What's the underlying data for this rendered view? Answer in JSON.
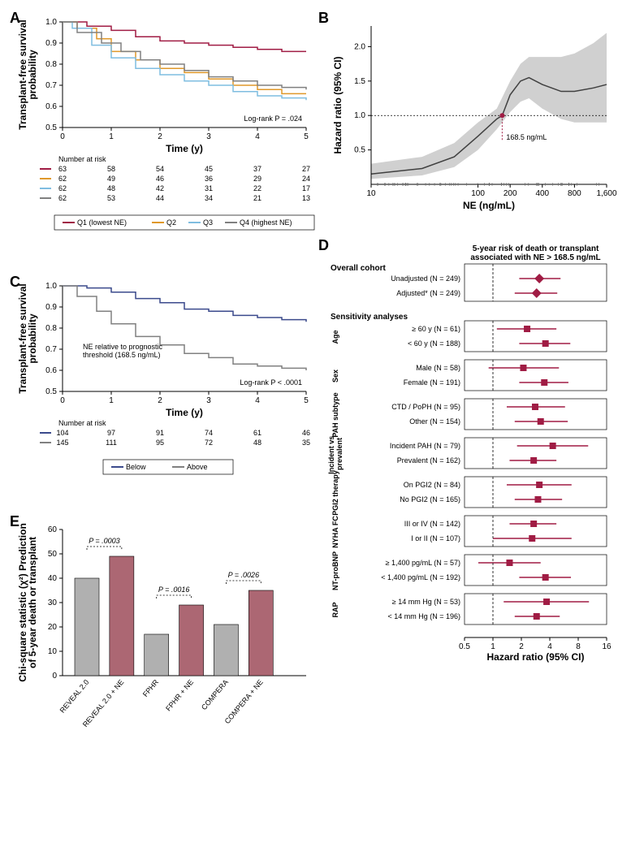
{
  "panelA": {
    "label": "A",
    "type": "kaplan_meier",
    "xlabel": "Time (y)",
    "ylabel": "Transplant-free survival\nprobability",
    "xlim": [
      0,
      5
    ],
    "ylim": [
      0.5,
      1.0
    ],
    "xticks": [
      0,
      1,
      2,
      3,
      4,
      5
    ],
    "yticks": [
      0.5,
      0.6,
      0.7,
      0.8,
      0.9,
      1.0
    ],
    "annotation": "Log-rank P = .024",
    "series": [
      {
        "name": "Q1 (lowest NE)",
        "color": "#a01c44",
        "points": [
          [
            0,
            1.0
          ],
          [
            0.5,
            0.98
          ],
          [
            1,
            0.96
          ],
          [
            1.5,
            0.93
          ],
          [
            2,
            0.91
          ],
          [
            2.5,
            0.9
          ],
          [
            3,
            0.89
          ],
          [
            3.5,
            0.88
          ],
          [
            4,
            0.87
          ],
          [
            4.5,
            0.86
          ],
          [
            5,
            0.86
          ]
        ]
      },
      {
        "name": "Q2",
        "color": "#e0982a",
        "points": [
          [
            0,
            1.0
          ],
          [
            0.3,
            0.97
          ],
          [
            0.7,
            0.92
          ],
          [
            1,
            0.86
          ],
          [
            1.5,
            0.82
          ],
          [
            2,
            0.78
          ],
          [
            2.5,
            0.76
          ],
          [
            3,
            0.73
          ],
          [
            3.5,
            0.7
          ],
          [
            4,
            0.68
          ],
          [
            4.5,
            0.66
          ],
          [
            5,
            0.66
          ]
        ]
      },
      {
        "name": "Q3",
        "color": "#7fbde0",
        "points": [
          [
            0,
            1.0
          ],
          [
            0.2,
            0.97
          ],
          [
            0.6,
            0.89
          ],
          [
            1,
            0.83
          ],
          [
            1.5,
            0.78
          ],
          [
            2,
            0.75
          ],
          [
            2.5,
            0.72
          ],
          [
            3,
            0.7
          ],
          [
            3.5,
            0.67
          ],
          [
            4,
            0.65
          ],
          [
            4.5,
            0.64
          ],
          [
            5,
            0.63
          ]
        ]
      },
      {
        "name": "Q4 (highest NE)",
        "color": "#808080",
        "points": [
          [
            0,
            1.0
          ],
          [
            0.3,
            0.95
          ],
          [
            0.8,
            0.9
          ],
          [
            1.2,
            0.86
          ],
          [
            1.6,
            0.82
          ],
          [
            2,
            0.8
          ],
          [
            2.5,
            0.77
          ],
          [
            3,
            0.74
          ],
          [
            3.5,
            0.72
          ],
          [
            4,
            0.7
          ],
          [
            4.5,
            0.69
          ],
          [
            5,
            0.68
          ]
        ]
      }
    ],
    "risk_table": {
      "header": "Number at risk",
      "cols": [
        0,
        1,
        2,
        3,
        4,
        5
      ],
      "rows": [
        {
          "color": "#a01c44",
          "vals": [
            63,
            58,
            54,
            45,
            37,
            27
          ]
        },
        {
          "color": "#e0982a",
          "vals": [
            62,
            49,
            46,
            36,
            29,
            24
          ]
        },
        {
          "color": "#7fbde0",
          "vals": [
            62,
            48,
            42,
            31,
            22,
            17
          ]
        },
        {
          "color": "#808080",
          "vals": [
            62,
            53,
            44,
            34,
            21,
            13
          ]
        }
      ]
    },
    "legend": [
      "Q1 (lowest NE)",
      "Q2",
      "Q3",
      "Q4 (highest NE)"
    ]
  },
  "panelB": {
    "label": "B",
    "type": "spline",
    "xlabel": "NE (ng/mL)",
    "ylabel": "Hazard ratio (95% CI)",
    "xscale": "log",
    "xlim": [
      10,
      1600
    ],
    "ylim": [
      0,
      2.3
    ],
    "xticks": [
      10,
      100,
      200,
      400,
      800,
      1600
    ],
    "yticks": [
      0.5,
      1.0,
      1.5,
      2.0
    ],
    "ref_line": 1.0,
    "annotation": "168.5 ng/mL",
    "annotation_color": "#a01c44",
    "curve_color": "#404040",
    "ci_color": "#d0d0d0",
    "curve": [
      [
        10,
        0.15
      ],
      [
        30,
        0.23
      ],
      [
        60,
        0.4
      ],
      [
        100,
        0.7
      ],
      [
        150,
        0.95
      ],
      [
        168.5,
        1.0
      ],
      [
        200,
        1.3
      ],
      [
        250,
        1.5
      ],
      [
        300,
        1.55
      ],
      [
        400,
        1.45
      ],
      [
        600,
        1.35
      ],
      [
        800,
        1.35
      ],
      [
        1200,
        1.4
      ],
      [
        1600,
        1.45
      ]
    ],
    "ci_upper": [
      [
        10,
        0.3
      ],
      [
        30,
        0.4
      ],
      [
        60,
        0.6
      ],
      [
        100,
        0.9
      ],
      [
        150,
        1.1
      ],
      [
        200,
        1.5
      ],
      [
        250,
        1.75
      ],
      [
        300,
        1.85
      ],
      [
        400,
        1.85
      ],
      [
        600,
        1.85
      ],
      [
        800,
        1.9
      ],
      [
        1200,
        2.05
      ],
      [
        1600,
        2.2
      ]
    ],
    "ci_lower": [
      [
        10,
        0.08
      ],
      [
        30,
        0.13
      ],
      [
        60,
        0.25
      ],
      [
        100,
        0.5
      ],
      [
        150,
        0.8
      ],
      [
        200,
        1.05
      ],
      [
        250,
        1.2
      ],
      [
        300,
        1.25
      ],
      [
        400,
        1.1
      ],
      [
        600,
        0.95
      ],
      [
        800,
        0.9
      ],
      [
        1200,
        0.9
      ],
      [
        1600,
        0.9
      ]
    ]
  },
  "panelC": {
    "label": "C",
    "type": "kaplan_meier",
    "xlabel": "Time (y)",
    "ylabel": "Transplant-free survival\nprobability",
    "xlim": [
      0,
      5
    ],
    "ylim": [
      0.5,
      1.0
    ],
    "xticks": [
      0,
      1,
      2,
      3,
      4,
      5
    ],
    "yticks": [
      0.5,
      0.6,
      0.7,
      0.8,
      0.9,
      1.0
    ],
    "note": "NE relative to prognostic\nthreshold (168.5 ng/mL)",
    "annotation": "Log-rank P < .0001",
    "series": [
      {
        "name": "Below",
        "color": "#3b4a8c",
        "points": [
          [
            0,
            1.0
          ],
          [
            0.5,
            0.99
          ],
          [
            1,
            0.97
          ],
          [
            1.5,
            0.94
          ],
          [
            2,
            0.92
          ],
          [
            2.5,
            0.89
          ],
          [
            3,
            0.88
          ],
          [
            3.5,
            0.86
          ],
          [
            4,
            0.85
          ],
          [
            4.5,
            0.84
          ],
          [
            5,
            0.83
          ]
        ]
      },
      {
        "name": "Above",
        "color": "#808080",
        "points": [
          [
            0,
            1.0
          ],
          [
            0.3,
            0.95
          ],
          [
            0.7,
            0.88
          ],
          [
            1,
            0.82
          ],
          [
            1.5,
            0.76
          ],
          [
            2,
            0.72
          ],
          [
            2.5,
            0.68
          ],
          [
            3,
            0.66
          ],
          [
            3.5,
            0.63
          ],
          [
            4,
            0.62
          ],
          [
            4.5,
            0.61
          ],
          [
            5,
            0.6
          ]
        ]
      }
    ],
    "risk_table": {
      "header": "Number at risk",
      "cols": [
        0,
        1,
        2,
        3,
        4,
        5
      ],
      "rows": [
        {
          "color": "#3b4a8c",
          "vals": [
            104,
            97,
            91,
            74,
            61,
            46
          ]
        },
        {
          "color": "#808080",
          "vals": [
            145,
            111,
            95,
            72,
            48,
            35
          ]
        }
      ]
    },
    "legend": [
      "Below",
      "Above"
    ]
  },
  "panelD": {
    "label": "D",
    "type": "forest",
    "title_left": "",
    "title_right": "5-year risk of death or transplant\nassociated with NE > 168.5 ng/mL",
    "xlabel": "Hazard ratio (95% CI)",
    "xscale": "log",
    "xlim": [
      0.5,
      16
    ],
    "xticks": [
      0.5,
      1,
      2,
      4,
      8,
      16
    ],
    "ref_line": 1.0,
    "point_color": "#a01c44",
    "line_color": "#a01c44",
    "groups": [
      {
        "heading": "Overall cohort",
        "rotated": false,
        "items": [
          {
            "label": "Unadjusted (N = 249)",
            "hr": 3.1,
            "lo": 1.9,
            "hi": 5.2,
            "marker": "diamond"
          },
          {
            "label": "Adjusted* (N = 249)",
            "hr": 2.9,
            "lo": 1.7,
            "hi": 4.8,
            "marker": "diamond"
          }
        ]
      },
      {
        "heading": "Sensitivity analyses",
        "rotated": false,
        "items": []
      },
      {
        "heading": "Age",
        "rotated": true,
        "items": [
          {
            "label": "≥ 60 y (N = 61)",
            "hr": 2.3,
            "lo": 1.1,
            "hi": 4.7
          },
          {
            "label": "< 60 y (N = 188)",
            "hr": 3.6,
            "lo": 1.9,
            "hi": 6.6
          }
        ]
      },
      {
        "heading": "Sex",
        "rotated": true,
        "items": [
          {
            "label": "Male (N = 58)",
            "hr": 2.1,
            "lo": 0.9,
            "hi": 5.0
          },
          {
            "label": "Female (N = 191)",
            "hr": 3.5,
            "lo": 1.9,
            "hi": 6.3
          }
        ]
      },
      {
        "heading": "PAH subtype",
        "rotated": true,
        "items": [
          {
            "label": "CTD / PoPH (N = 95)",
            "hr": 2.8,
            "lo": 1.4,
            "hi": 5.8
          },
          {
            "label": "Other (N = 154)",
            "hr": 3.2,
            "lo": 1.7,
            "hi": 6.2
          }
        ]
      },
      {
        "heading": "Incident vs. prevalent",
        "rotated": true,
        "items": [
          {
            "label": "Incident PAH (N = 79)",
            "hr": 4.3,
            "lo": 1.8,
            "hi": 10.2
          },
          {
            "label": "Prevalent (N = 162)",
            "hr": 2.7,
            "lo": 1.5,
            "hi": 4.7
          }
        ]
      },
      {
        "heading": "PGI2 therapy",
        "rotated": true,
        "items": [
          {
            "label": "On PGI2 (N = 84)",
            "hr": 3.1,
            "lo": 1.4,
            "hi": 6.8
          },
          {
            "label": "No PGI2 (N = 165)",
            "hr": 3.0,
            "lo": 1.7,
            "hi": 5.4
          }
        ]
      },
      {
        "heading": "NYHA FC",
        "rotated": true,
        "items": [
          {
            "label": "III or IV (N = 142)",
            "hr": 2.7,
            "lo": 1.5,
            "hi": 4.7
          },
          {
            "label": "I or II (N = 107)",
            "hr": 2.6,
            "lo": 1.0,
            "hi": 6.8
          }
        ]
      },
      {
        "heading": "NT-proBNP",
        "rotated": true,
        "items": [
          {
            "label": "≥ 1,400 pg/mL (N = 57)",
            "hr": 1.5,
            "lo": 0.7,
            "hi": 3.2
          },
          {
            "label": "< 1,400 pg/mL (N = 192)",
            "hr": 3.6,
            "lo": 1.9,
            "hi": 6.7
          }
        ]
      },
      {
        "heading": "RAP",
        "rotated": true,
        "items": [
          {
            "label": "≥ 14 mm Hg (N = 53)",
            "hr": 3.7,
            "lo": 1.3,
            "hi": 10.4
          },
          {
            "label": "< 14 mm Hg (N = 196)",
            "hr": 2.9,
            "lo": 1.7,
            "hi": 5.1
          }
        ]
      }
    ]
  },
  "panelE": {
    "label": "E",
    "type": "bar",
    "ylabel": "Chi-square statistic (χ²) Prediction\nof 5-year death or transplant",
    "ylim": [
      0,
      60
    ],
    "yticks": [
      0,
      10,
      20,
      30,
      40,
      50,
      60
    ],
    "bar_width": 0.7,
    "colors": {
      "base": "#b0b0b0",
      "plus": "#ac6773"
    },
    "pvalues": [
      {
        "over": [
          0,
          1
        ],
        "text": "P = .0003"
      },
      {
        "over": [
          2,
          3
        ],
        "text": "P = .0016"
      },
      {
        "over": [
          4,
          5
        ],
        "text": "P = .0026"
      }
    ],
    "bars": [
      {
        "label": "REVEAL 2.0",
        "value": 40,
        "style": "base"
      },
      {
        "label": "REVEAL 2.0 + NE",
        "value": 49,
        "style": "plus"
      },
      {
        "label": "FPHR",
        "value": 17,
        "style": "base"
      },
      {
        "label": "FPHR + NE",
        "value": 29,
        "style": "plus"
      },
      {
        "label": "COMPERA",
        "value": 21,
        "style": "base"
      },
      {
        "label": "COMPERA + NE",
        "value": 35,
        "style": "plus"
      }
    ]
  }
}
